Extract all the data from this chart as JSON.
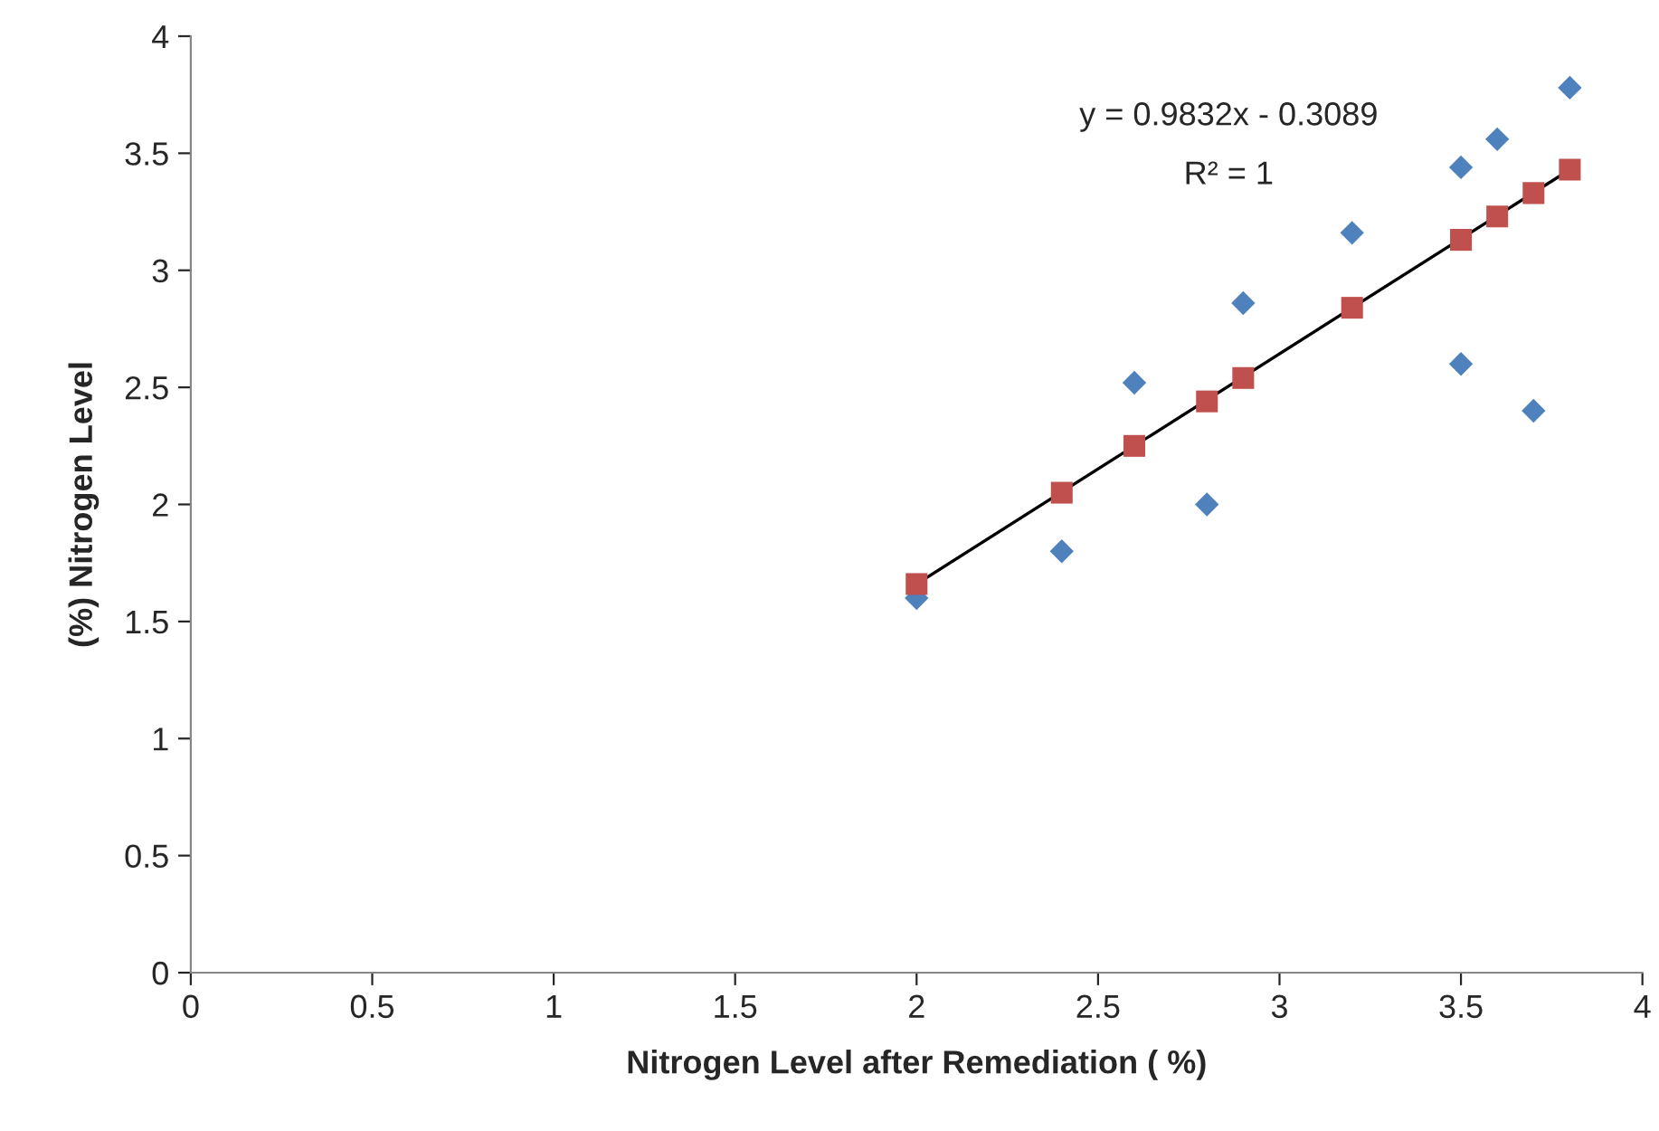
{
  "chart_data": {
    "type": "scatter",
    "xlabel": "Nitrogen Level after Remediation ( %)",
    "ylabel": "(%) Nitrogen Level",
    "xlim": [
      0,
      4
    ],
    "xticks": [
      0,
      0.5,
      1,
      1.5,
      2,
      2.5,
      3,
      3.5,
      4
    ],
    "ylim": [
      0,
      4
    ],
    "yticks": [
      0,
      0.5,
      1,
      1.5,
      2,
      2.5,
      3,
      3.5,
      4
    ],
    "grid": false,
    "legend": false,
    "annotations": [
      "y = 0.9832x - 0.3089",
      "R² = 1"
    ],
    "series": [
      {
        "marker": "diamond",
        "color": "#4f81bd",
        "x": [
          2,
          2.4,
          2.6,
          2.8,
          2.9,
          3.2,
          3.5,
          3.5,
          3.6,
          3.7,
          3.8
        ],
        "values": [
          1.6,
          1.8,
          2.52,
          2.0,
          2.86,
          3.16,
          3.44,
          2.6,
          3.56,
          2.4,
          3.78
        ]
      },
      {
        "type": "line",
        "marker": "none",
        "line_style": "solid",
        "color": "#000000",
        "x": [
          2,
          3.8
        ],
        "values": [
          1.66,
          3.43
        ]
      },
      {
        "marker": "square",
        "color": "#c0504d",
        "x": [
          2,
          2.4,
          2.6,
          2.8,
          2.9,
          3.2,
          3.5,
          3.6,
          3.7,
          3.8
        ],
        "values": [
          1.66,
          2.05,
          2.25,
          2.44,
          2.54,
          2.84,
          3.13,
          3.23,
          3.33,
          3.43
        ]
      }
    ]
  }
}
